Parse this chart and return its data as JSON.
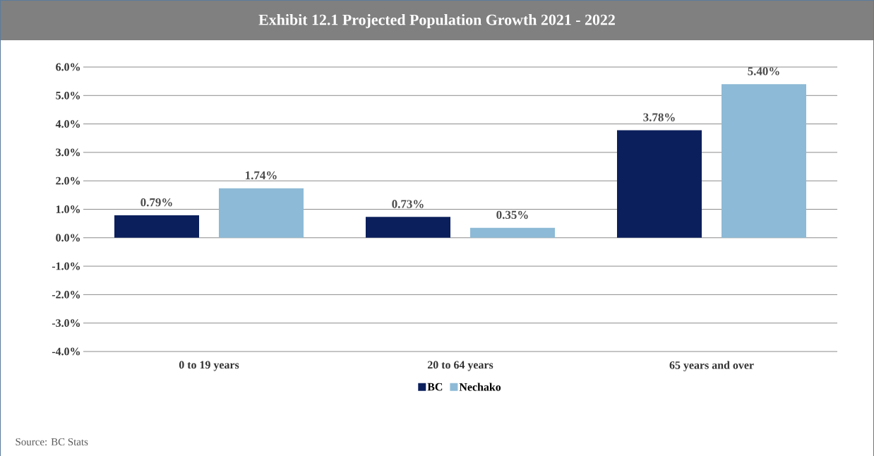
{
  "chart_data": {
    "type": "bar",
    "title": "Exhibit 12.1 Projected Population Growth 2021 - 2022",
    "categories": [
      "0 to 19 years",
      "20 to 64 years",
      "65 years and over"
    ],
    "series": [
      {
        "name": "BC",
        "color": "#0b1f5c",
        "values": [
          0.79,
          0.73,
          3.78
        ],
        "value_labels": [
          "0.79%",
          "0.73%",
          "3.78%"
        ]
      },
      {
        "name": "Nechako",
        "color": "#8dbad6",
        "values": [
          1.74,
          0.35,
          5.4
        ],
        "value_labels": [
          "1.74%",
          "0.35%",
          "5.40%"
        ]
      }
    ],
    "ylim": [
      -4,
      6
    ],
    "yticks": [
      {
        "value": -4,
        "label": "-4.0%"
      },
      {
        "value": -3,
        "label": "-3.0%"
      },
      {
        "value": -2,
        "label": "-2.0%"
      },
      {
        "value": -1,
        "label": "-1.0%"
      },
      {
        "value": 0,
        "label": "0.0%"
      },
      {
        "value": 1,
        "label": "1.0%"
      },
      {
        "value": 2,
        "label": "2.0%"
      },
      {
        "value": 3,
        "label": "3.0%"
      },
      {
        "value": 4,
        "label": "4.0%"
      },
      {
        "value": 5,
        "label": "5.0%"
      },
      {
        "value": 6,
        "label": "6.0%"
      }
    ],
    "grid": "y",
    "legend": "bottom",
    "annotations": [
      "Source: BC Stats"
    ]
  }
}
